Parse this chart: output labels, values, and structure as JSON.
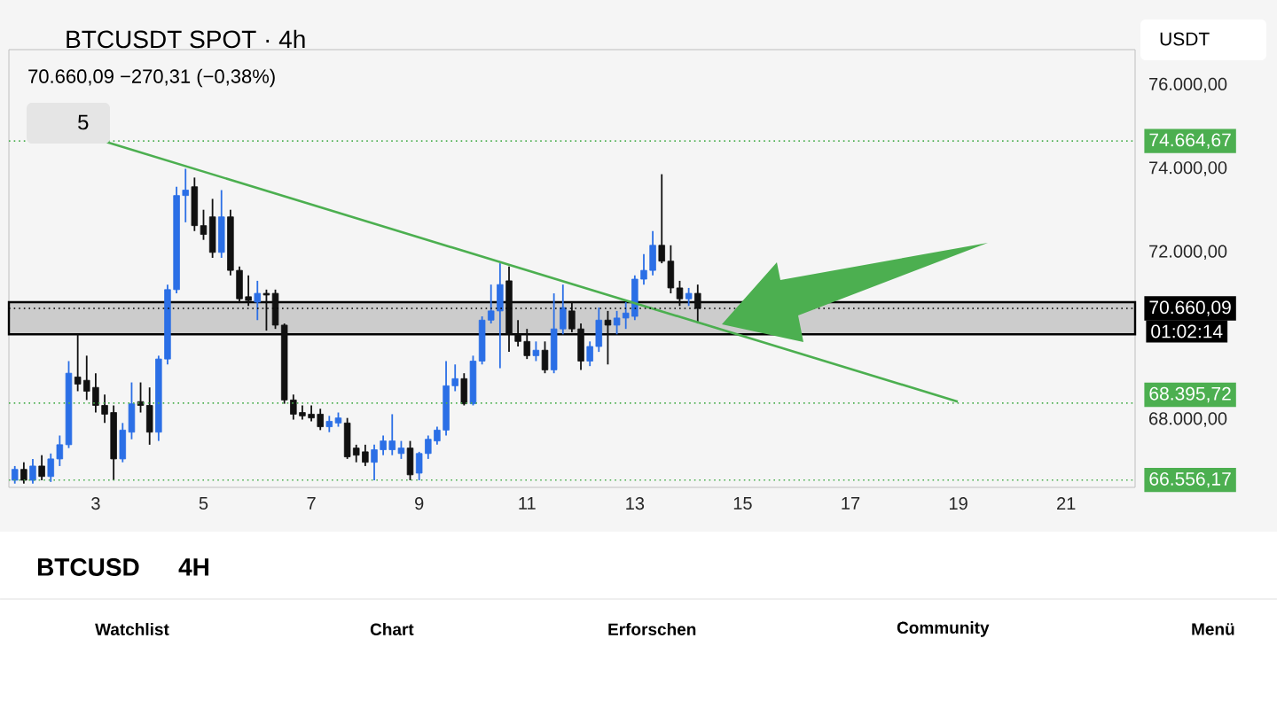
{
  "chart_data": {
    "type": "candlestick",
    "title": "BTCUSDT SPOT · 4h",
    "subtitle": "70.660,09 −270,31 (−0,38%)",
    "x": [
      1.5,
      1.667,
      1.833,
      2,
      2.167,
      2.333,
      2.5,
      2.667,
      2.833,
      3,
      3.167,
      3.333,
      3.5,
      3.667,
      3.833,
      4,
      4.167,
      4.333,
      4.5,
      4.667,
      4.833,
      5,
      5.167,
      5.333,
      5.5,
      5.667,
      5.833,
      6,
      6.167,
      6.333,
      6.5,
      6.667,
      6.833,
      7,
      7.167,
      7.333,
      7.5,
      7.667,
      7.833,
      8,
      8.167,
      8.333,
      8.5,
      8.667,
      8.833,
      9,
      9.167,
      9.333,
      9.5,
      9.667,
      9.833,
      10,
      10.167,
      10.333,
      10.5,
      10.667,
      10.833,
      11,
      11.167,
      11.333,
      11.5,
      11.667,
      11.833,
      12,
      12.167,
      12.333,
      12.5,
      12.667,
      12.833,
      13,
      13.167,
      13.333,
      13.5,
      13.667,
      13.833,
      14,
      14.167
    ],
    "ohlc": [
      [
        66550,
        66890,
        66470,
        66810
      ],
      [
        66810,
        66980,
        66470,
        66550
      ],
      [
        66550,
        67060,
        66470,
        66890
      ],
      [
        66890,
        67150,
        66550,
        66640
      ],
      [
        66640,
        67190,
        66510,
        67060
      ],
      [
        67060,
        67620,
        66890,
        67400
      ],
      [
        67400,
        69400,
        67320,
        69110
      ],
      [
        69020,
        70040,
        68680,
        68850
      ],
      [
        68940,
        69530,
        68470,
        68680
      ],
      [
        68770,
        69110,
        68170,
        68340
      ],
      [
        68340,
        68600,
        67920,
        68130
      ],
      [
        68170,
        68340,
        66550,
        67060
      ],
      [
        67060,
        67920,
        66980,
        67750
      ],
      [
        67700,
        68890,
        67530,
        68380
      ],
      [
        68430,
        68890,
        68170,
        68340
      ],
      [
        68340,
        68770,
        67400,
        67700
      ],
      [
        67700,
        69530,
        67490,
        69450
      ],
      [
        69450,
        71230,
        69320,
        71110
      ],
      [
        71110,
        73570,
        71020,
        73360
      ],
      [
        73360,
        74000,
        72720,
        73490
      ],
      [
        73570,
        73790,
        72510,
        72640
      ],
      [
        72640,
        73020,
        72300,
        72430
      ],
      [
        72850,
        73280,
        71870,
        72000
      ],
      [
        72000,
        73490,
        71870,
        72850
      ],
      [
        72850,
        73020,
        71450,
        71570
      ],
      [
        71570,
        71660,
        70810,
        70890
      ],
      [
        70940,
        71450,
        70720,
        70850
      ],
      [
        70810,
        71320,
        70380,
        71020
      ],
      [
        71020,
        71110,
        70130,
        70980
      ],
      [
        71020,
        71110,
        70170,
        70260
      ],
      [
        70260,
        70300,
        68380,
        68470
      ],
      [
        68470,
        68600,
        68000,
        68130
      ],
      [
        68170,
        68340,
        68000,
        68090
      ],
      [
        68130,
        68340,
        67960,
        68040
      ],
      [
        68130,
        68260,
        67750,
        67830
      ],
      [
        67830,
        68090,
        67700,
        67960
      ],
      [
        67920,
        68170,
        67830,
        68040
      ],
      [
        67920,
        68040,
        67060,
        67110
      ],
      [
        67320,
        67400,
        66980,
        67150
      ],
      [
        67230,
        67400,
        66890,
        66980
      ],
      [
        66980,
        67400,
        66550,
        67280
      ],
      [
        67280,
        67620,
        67150,
        67490
      ],
      [
        67280,
        68130,
        67150,
        67490
      ],
      [
        67190,
        67490,
        67060,
        67320
      ],
      [
        67320,
        67490,
        66550,
        66680
      ],
      [
        66720,
        67230,
        66550,
        67190
      ],
      [
        67190,
        67620,
        67060,
        67530
      ],
      [
        67490,
        67830,
        67400,
        67750
      ],
      [
        67750,
        69400,
        67620,
        68810
      ],
      [
        68810,
        69320,
        68680,
        68980
      ],
      [
        68980,
        69110,
        68340,
        68380
      ],
      [
        68380,
        69530,
        68340,
        69400
      ],
      [
        69400,
        70470,
        69320,
        70380
      ],
      [
        70380,
        71230,
        70300,
        70600
      ],
      [
        70600,
        71740,
        69230,
        71230
      ],
      [
        71320,
        71660,
        69620,
        70040
      ],
      [
        70040,
        70380,
        69750,
        69870
      ],
      [
        69870,
        70170,
        69450,
        69530
      ],
      [
        69530,
        69870,
        69400,
        69660
      ],
      [
        69660,
        69870,
        69110,
        69190
      ],
      [
        69190,
        71020,
        69110,
        70170
      ],
      [
        70170,
        71230,
        70040,
        70680
      ],
      [
        70600,
        70810,
        70090,
        70170
      ],
      [
        70170,
        70300,
        69190,
        69400
      ],
      [
        69400,
        69870,
        69280,
        69750
      ],
      [
        69750,
        70680,
        69620,
        70380
      ],
      [
        70380,
        70600,
        69320,
        70260
      ],
      [
        70260,
        70600,
        70040,
        70430
      ],
      [
        70430,
        70810,
        70170,
        70550
      ],
      [
        70470,
        71450,
        70380,
        71360
      ],
      [
        71360,
        71960,
        71230,
        71570
      ],
      [
        71570,
        72510,
        71450,
        72170
      ],
      [
        72170,
        73870,
        71740,
        71790
      ],
      [
        71790,
        72170,
        71020,
        71150
      ],
      [
        71150,
        71320,
        70720,
        70890
      ],
      [
        70890,
        71150,
        70720,
        71020
      ],
      [
        71020,
        71230,
        70300,
        70660.09
      ]
    ],
    "colors": [
      "#2b6fe6",
      "#111111",
      "#2b6fe6",
      "#111111",
      "#2b6fe6",
      "#2b6fe6",
      "#2b6fe6",
      "#111111",
      "#111111",
      "#111111",
      "#111111",
      "#111111",
      "#2b6fe6",
      "#2b6fe6",
      "#111111",
      "#111111",
      "#2b6fe6",
      "#2b6fe6",
      "#2b6fe6",
      "#2b6fe6",
      "#111111",
      "#111111",
      "#111111",
      "#2b6fe6",
      "#111111",
      "#111111",
      "#111111",
      "#2b6fe6",
      "#111111",
      "#111111",
      "#111111",
      "#111111",
      "#111111",
      "#111111",
      "#111111",
      "#2b6fe6",
      "#2b6fe6",
      "#111111",
      "#111111",
      "#111111",
      "#2b6fe6",
      "#2b6fe6",
      "#2b6fe6",
      "#2b6fe6",
      "#111111",
      "#2b6fe6",
      "#2b6fe6",
      "#2b6fe6",
      "#2b6fe6",
      "#2b6fe6",
      "#111111",
      "#2b6fe6",
      "#2b6fe6",
      "#2b6fe6",
      "#2b6fe6",
      "#111111",
      "#111111",
      "#111111",
      "#2b6fe6",
      "#111111",
      "#2b6fe6",
      "#2b6fe6",
      "#111111",
      "#111111",
      "#2b6fe6",
      "#2b6fe6",
      "#111111",
      "#2b6fe6",
      "#2b6fe6",
      "#2b6fe6",
      "#2b6fe6",
      "#2b6fe6",
      "#111111",
      "#111111",
      "#111111",
      "#2b6fe6",
      "#111111"
    ],
    "series": [
      {
        "type": "line",
        "color": "#4caf50",
        "x": [
          3.2,
          18.99
        ],
        "values": [
          74640,
          68430
        ]
      }
    ],
    "xlim": [
      1.39,
      22.28
    ],
    "ylim": [
      66380,
      76850
    ],
    "xticks": [
      3,
      5,
      7,
      9,
      11,
      13,
      15,
      17,
      19,
      21
    ],
    "yticks": [
      {
        "value": 68000,
        "label": "68.000,00"
      },
      {
        "value": 72000,
        "label": "72.000,00"
      },
      {
        "value": 74000,
        "label": "74.000,00"
      },
      {
        "value": 76000,
        "label": "76.000,00"
      }
    ],
    "bands": [
      {
        "axis": "y",
        "from": 70040,
        "to": 70810,
        "color": "#cccccc"
      }
    ],
    "ref_lines": [
      {
        "axis": "y",
        "value": 74664.67,
        "label": "74.664,67",
        "color": "#4caf50",
        "line_style": "dotted"
      },
      {
        "axis": "y",
        "value": 70660.09,
        "label": "70.660,09",
        "color": "#000000",
        "line_style": "dotted"
      },
      {
        "axis": "y",
        "value": 68395.72,
        "label": "68.395,72",
        "color": "#4caf50",
        "line_style": "dotted"
      },
      {
        "axis": "y",
        "value": 66556.17,
        "label": "66.556,17",
        "color": "#4caf50",
        "line_style": "dotted"
      }
    ],
    "annotations": [
      "5",
      "USDT",
      "01:02:14",
      "BTCUSD",
      "4H",
      "Watchlist",
      "Chart",
      "Erforschen",
      "Community",
      "Menü"
    ]
  }
}
